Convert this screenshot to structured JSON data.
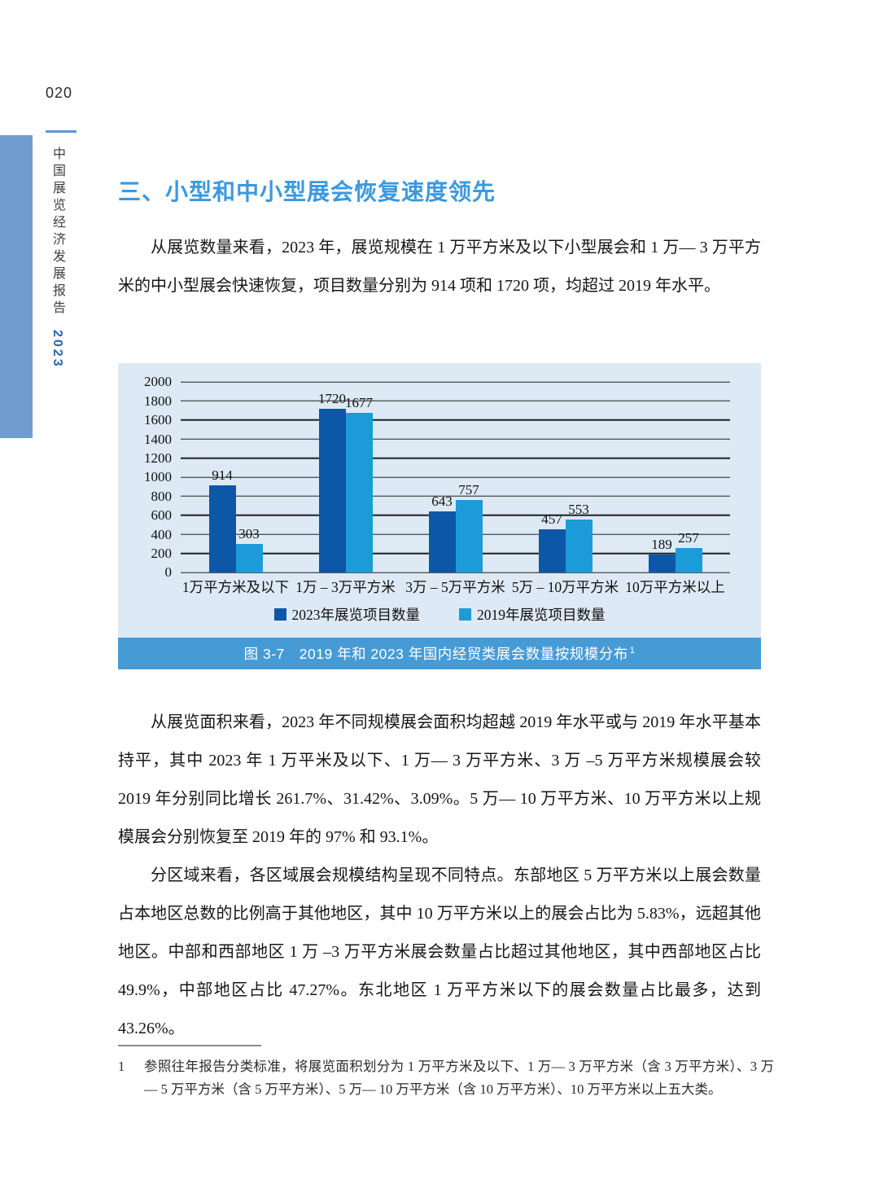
{
  "page": {
    "page_number": "020",
    "sidebar_title": "中国展览经济发展报告",
    "sidebar_year": "2023"
  },
  "heading": "三、小型和中小型展会恢复速度领先",
  "paragraphs": {
    "p1": "从展览数量来看，2023 年，展览规模在 1 万平方米及以下小型展会和 1 万— 3 万平方米的中小型展会快速恢复，项目数量分别为 914 项和 1720 项，均超过 2019 年水平。",
    "p2": "从展览面积来看，2023 年不同规模展会面积均超越 2019 年水平或与 2019 年水平基本持平，其中 2023 年 1 万平米及以下、1 万— 3 万平方米、3 万 –5 万平方米规模展会较 2019 年分别同比增长 261.7%、31.42%、3.09%。5 万— 10 万平方米、10 万平方米以上规模展会分别恢复至 2019 年的 97% 和 93.1%。",
    "p3": "分区域来看，各区域展会规模结构呈现不同特点。东部地区 5 万平方米以上展会数量占本地区总数的比例高于其他地区，其中 10 万平方米以上的展会占比为 5.83%，远超其他地区。中部和西部地区 1 万 –3 万平方米展会数量占比超过其他地区，其中西部地区占比 49.9%，中部地区占比 47.27%。东北地区 1 万平方米以下的展会数量占比最多，达到 43.26%。"
  },
  "chart_data": {
    "type": "bar",
    "title": "图 3-7　2019 年和 2023 年国内经贸类展会数量按规模分布",
    "title_superscript": "1",
    "categories": [
      "1万平方米及以下",
      "1万 – 3万平方米",
      "3万 – 5万平方米",
      "5万 – 10万平方米",
      "10万平方米以上"
    ],
    "series": [
      {
        "name": "2023年展览项目数量",
        "color": "#0d57a8",
        "values": [
          914,
          1720,
          643,
          457,
          189
        ]
      },
      {
        "name": "2019年展览项目数量",
        "color": "#1b9cd9",
        "values": [
          303,
          1677,
          757,
          553,
          257
        ]
      }
    ],
    "ylim": [
      0,
      2000
    ],
    "ytick_step": 200,
    "grid": true,
    "legend_position": "bottom",
    "panel_background": "#dde9f4",
    "caption_background": "#479bd5"
  },
  "footnote": {
    "marker": "1",
    "text": "参照往年报告分类标准，将展览面积划分为 1 万平方米及以下、1 万— 3 万平方米（含 3 万平方米）、3 万— 5 万平方米（含 5 万平方米）、5 万— 10 万平方米（含 10 万平方米）、10 万平方米以上五大类。"
  },
  "colors": {
    "heading_blue": "#3b99de",
    "sidebar_bar": "#6f9dd2",
    "header_rule": "#5b9bd5",
    "series_2023": "#0d57a8",
    "series_2019": "#1b9cd9"
  }
}
